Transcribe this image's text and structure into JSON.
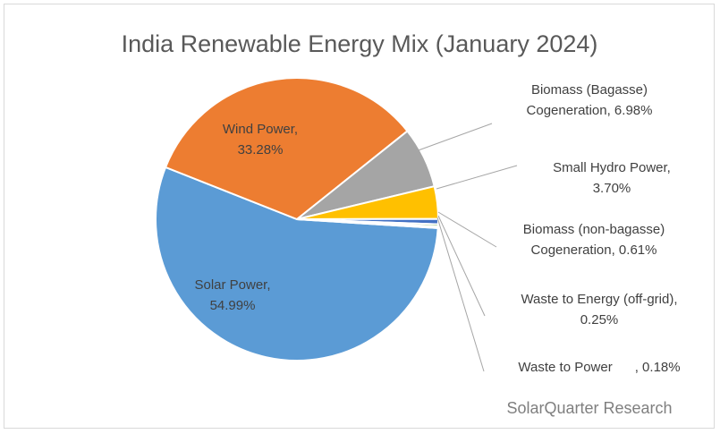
{
  "chart_data": {
    "type": "pie",
    "title": "India Renewable Energy Mix (January 2024)",
    "slices": [
      {
        "label_lines": [
          "Solar Power,",
          "54.99%"
        ],
        "name": "Solar Power",
        "value": 54.99,
        "color": "#5b9bd5"
      },
      {
        "label_lines": [
          "Wind Power,",
          "33.28%"
        ],
        "name": "Wind Power",
        "value": 33.28,
        "color": "#ed7d31"
      },
      {
        "label_lines": [
          "Biomass (Bagasse)",
          "Cogeneration, 6.98%"
        ],
        "name": "Biomass (Bagasse) Cogeneration",
        "value": 6.98,
        "color": "#a5a5a5"
      },
      {
        "label_lines": [
          "Small Hydro Power,",
          "3.70%"
        ],
        "name": "Small Hydro Power",
        "value": 3.7,
        "color": "#ffc000"
      },
      {
        "label_lines": [
          "Biomass (non-bagasse)",
          "Cogeneration, 0.61%"
        ],
        "name": "Biomass (non-bagasse) Cogeneration",
        "value": 0.61,
        "color": "#4472c4"
      },
      {
        "label_lines": [
          "Waste to Energy (off-grid),",
          "0.25%"
        ],
        "name": "Waste to Energy (off-grid)",
        "value": 0.25,
        "color": "#70ad47"
      },
      {
        "label_lines": [
          "Waste to Power      , 0.18%"
        ],
        "name": "Waste to Power",
        "value": 0.18,
        "color": "#264478"
      }
    ]
  },
  "credit": "SolarQuarter Research"
}
